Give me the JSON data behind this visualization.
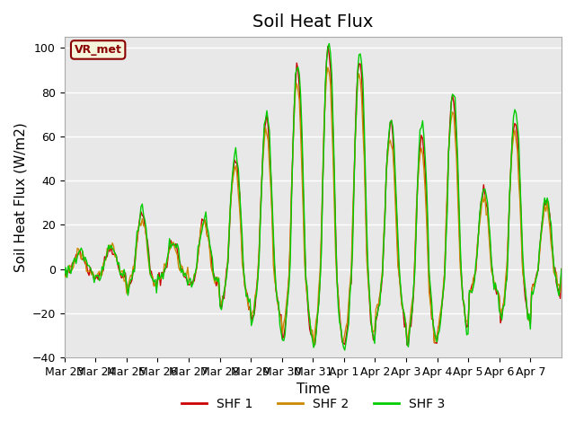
{
  "title": "Soil Heat Flux",
  "ylabel": "Soil Heat Flux (W/m2)",
  "xlabel": "Time",
  "ylim": [
    -40,
    105
  ],
  "colors": {
    "SHF 1": "#cc0000",
    "SHF 2": "#cc8800",
    "SHF 3": "#00cc00"
  },
  "legend_label": "VR_met",
  "legend_entries": [
    "SHF 1",
    "SHF 2",
    "SHF 3"
  ],
  "tick_labels": [
    "Mar 23",
    "Mar 24",
    "Mar 25",
    "Mar 26",
    "Mar 27",
    "Mar 28",
    "Mar 29",
    "Mar 30",
    "Mar 31",
    "Apr 1",
    "Apr 2",
    "Apr 3",
    "Apr 4",
    "Apr 5",
    "Apr 6",
    "Apr 7"
  ],
  "background_color": "#ffffff",
  "plot_bg_color": "#e8e8e8",
  "grid_color": "#ffffff",
  "title_fontsize": 14,
  "axis_fontsize": 11,
  "tick_fontsize": 9
}
